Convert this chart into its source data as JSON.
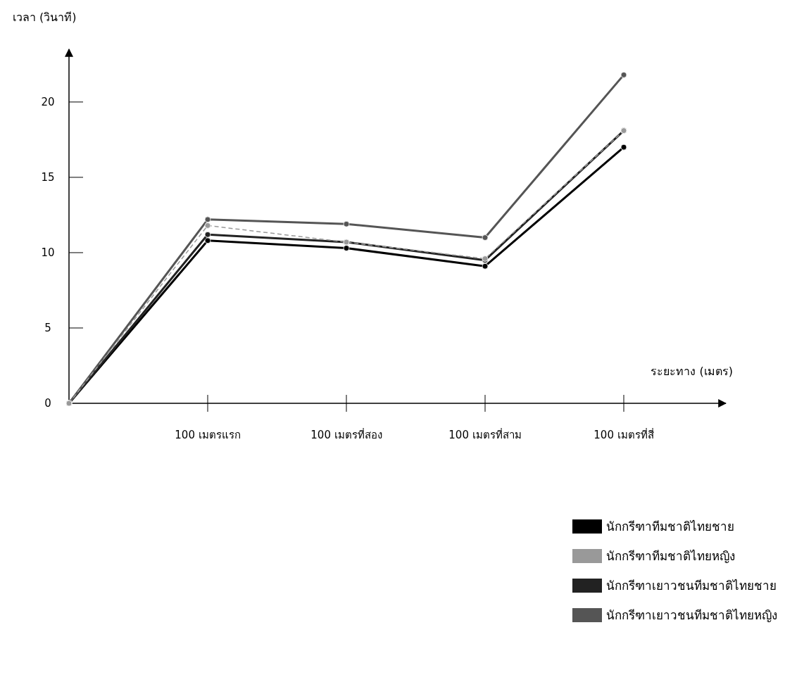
{
  "chart_data": {
    "type": "line",
    "xlabel": "ระยะทาง (เมตร)",
    "ylabel": "เวลา (วินาที)",
    "categories": [
      null,
      "100 เมตรแรก",
      "100 เมตรที่สอง",
      "100 เมตรที่สาม",
      "100 เมตรที่สี่"
    ],
    "series": [
      {
        "name": "นักกรีฑาทีมชาติไทยชาย",
        "color": "#000000",
        "values": [
          0,
          10.8,
          10.3,
          9.1,
          17.0
        ],
        "line_style": "solid"
      },
      {
        "name": "นักกรีฑาทีมชาติไทยหญิง",
        "color": "#999999",
        "values": [
          0,
          11.8,
          10.7,
          9.6,
          18.1
        ],
        "line_style": "dashed"
      },
      {
        "name": "นักกรีฑาเยาวชนทีมชาติไทยชาย",
        "color": "#222222",
        "values": [
          0,
          11.2,
          10.7,
          9.5,
          18.1
        ],
        "line_style": "solid"
      },
      {
        "name": "นักกรีฑาเยาวชนทีมชาติไทยหญิง",
        "color": "#555555",
        "values": [
          0,
          12.2,
          11.9,
          11.0,
          21.8
        ],
        "line_style": "solid"
      }
    ],
    "ylim": [
      0,
      23.5
    ],
    "yticks": [
      0,
      5,
      10,
      15,
      20
    ],
    "marker": "circle",
    "legend": "bottom right",
    "grid": false
  }
}
